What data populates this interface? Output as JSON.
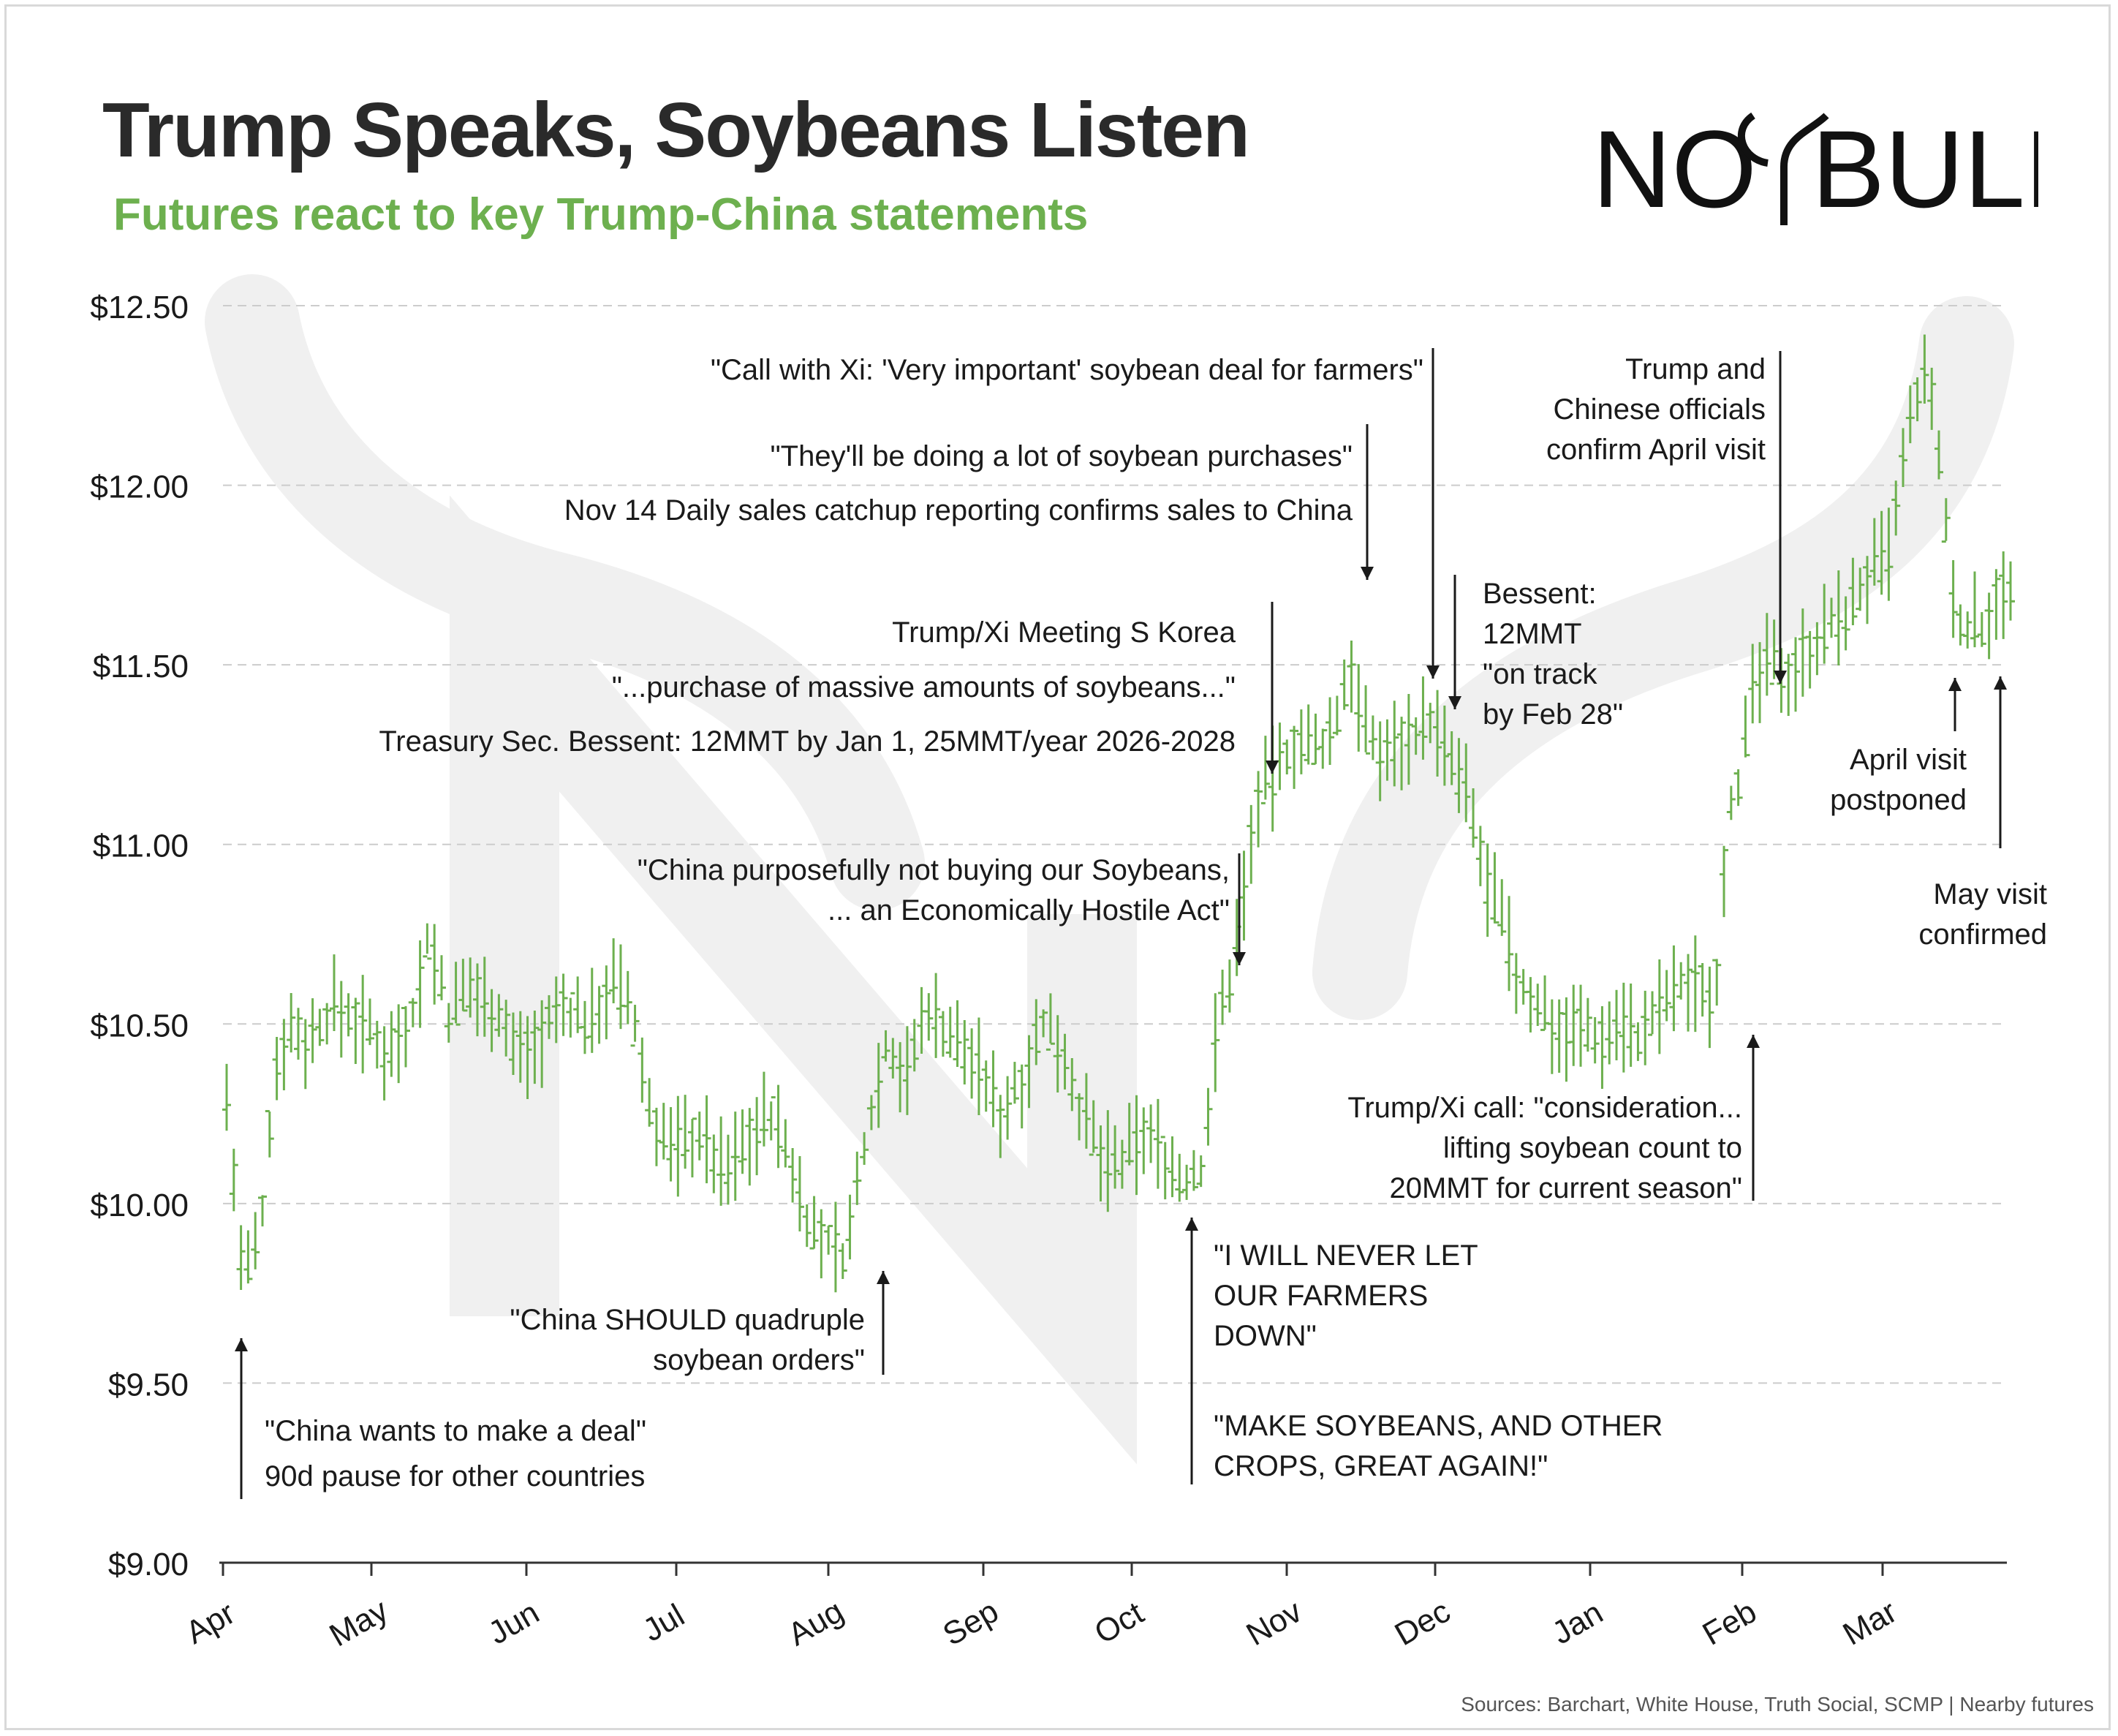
{
  "header": {
    "title": "Trump Speaks, Soybeans Listen",
    "subtitle": "Futures react to key Trump-China statements",
    "logo_text": "NO BULL"
  },
  "footer": {
    "sources": "Sources: Barchart, White House, Truth Social, SCMP | Nearby futures"
  },
  "colors": {
    "bar": "#6db04f",
    "title": "#2a2a2a",
    "subtitle": "#6db04f",
    "grid": "#cccccc",
    "axis": "#333333",
    "watermark": "#f0f0f0"
  },
  "chart_data": {
    "type": "ohlc",
    "title": "Trump Speaks, Soybeans Listen",
    "subtitle": "Futures react to key Trump-China statements",
    "ylim": [
      9.0,
      12.5
    ],
    "yticks": [
      9.0,
      9.5,
      10.0,
      10.5,
      11.0,
      11.5,
      12.0,
      12.5
    ],
    "ytick_labels": [
      "$9.00",
      "$9.50",
      "$10.00",
      "$10.50",
      "$11.00",
      "$11.50",
      "$12.00",
      "$12.50"
    ],
    "grid": true,
    "x_months": [
      "Apr",
      "May",
      "Jun",
      "Jul",
      "Aug",
      "Sep",
      "Oct",
      "Nov",
      "Dec",
      "Jan",
      "Feb",
      "Mar"
    ],
    "x_range_months": [
      0,
      11.85
    ],
    "series": [
      {
        "path": [
          [
            0.0,
            10.3
          ],
          [
            0.12,
            9.78
          ],
          [
            0.25,
            9.9
          ],
          [
            0.35,
            10.35
          ],
          [
            0.45,
            10.5
          ],
          [
            0.6,
            10.45
          ],
          [
            0.8,
            10.55
          ],
          [
            1.0,
            10.5
          ],
          [
            1.2,
            10.42
          ],
          [
            1.4,
            10.55
          ],
          [
            1.5,
            10.75
          ],
          [
            1.65,
            10.52
          ],
          [
            1.8,
            10.6
          ],
          [
            2.0,
            10.55
          ],
          [
            2.15,
            10.42
          ],
          [
            2.3,
            10.45
          ],
          [
            2.5,
            10.55
          ],
          [
            2.7,
            10.5
          ],
          [
            2.85,
            10.62
          ],
          [
            3.0,
            10.55
          ],
          [
            3.15,
            10.25
          ],
          [
            3.3,
            10.15
          ],
          [
            3.5,
            10.2
          ],
          [
            3.7,
            10.08
          ],
          [
            3.9,
            10.2
          ],
          [
            4.05,
            10.25
          ],
          [
            4.2,
            10.1
          ],
          [
            4.35,
            9.92
          ],
          [
            4.5,
            9.88
          ],
          [
            4.6,
            9.85
          ],
          [
            4.75,
            10.2
          ],
          [
            4.9,
            10.45
          ],
          [
            5.05,
            10.35
          ],
          [
            5.2,
            10.55
          ],
          [
            5.35,
            10.48
          ],
          [
            5.55,
            10.4
          ],
          [
            5.75,
            10.25
          ],
          [
            5.9,
            10.35
          ],
          [
            6.05,
            10.5
          ],
          [
            6.2,
            10.45
          ],
          [
            6.35,
            10.25
          ],
          [
            6.5,
            10.12
          ],
          [
            6.65,
            10.1
          ],
          [
            6.8,
            10.2
          ],
          [
            6.95,
            10.15
          ],
          [
            7.1,
            10.05
          ],
          [
            7.25,
            10.1
          ],
          [
            7.35,
            10.48
          ],
          [
            7.45,
            10.62
          ],
          [
            7.55,
            10.85
          ],
          [
            7.65,
            11.12
          ],
          [
            7.8,
            11.2
          ],
          [
            7.95,
            11.3
          ],
          [
            8.1,
            11.25
          ],
          [
            8.25,
            11.35
          ],
          [
            8.35,
            11.52
          ],
          [
            8.45,
            11.3
          ],
          [
            8.6,
            11.25
          ],
          [
            8.75,
            11.3
          ],
          [
            8.95,
            11.35
          ],
          [
            9.05,
            11.25
          ],
          [
            9.2,
            11.15
          ],
          [
            9.35,
            10.9
          ],
          [
            9.5,
            10.75
          ],
          [
            9.6,
            10.6
          ],
          [
            9.75,
            10.55
          ],
          [
            9.9,
            10.48
          ],
          [
            10.05,
            10.5
          ],
          [
            10.2,
            10.45
          ],
          [
            10.35,
            10.52
          ],
          [
            10.5,
            10.45
          ],
          [
            10.65,
            10.55
          ],
          [
            10.8,
            10.6
          ],
          [
            10.95,
            10.62
          ],
          [
            11.05,
            10.55
          ],
          [
            11.15,
            11.1
          ],
          [
            11.25,
            11.2
          ],
          [
            11.35,
            11.45
          ],
          [
            11.45,
            11.5
          ],
          [
            11.6,
            11.48
          ],
          [
            11.75,
            11.55
          ],
          [
            11.9,
            11.6
          ],
          [
            12.05,
            11.65
          ],
          [
            12.2,
            11.75
          ],
          [
            12.35,
            11.8
          ],
          [
            12.45,
            12.05
          ],
          [
            12.55,
            12.25
          ],
          [
            12.65,
            12.3
          ],
          [
            12.75,
            11.95
          ],
          [
            12.85,
            11.6
          ],
          [
            12.95,
            11.62
          ],
          [
            13.05,
            11.6
          ],
          [
            13.15,
            11.72
          ],
          [
            13.25,
            11.68
          ]
        ]
      }
    ],
    "annotations": [
      {
        "lines": [
          "\"China wants to make a deal\"",
          "90d pause for other countries"
        ]
      },
      {
        "lines": [
          "\"China SHOULD quadruple",
          "soybean orders\""
        ]
      },
      {
        "lines": [
          "\"I WILL NEVER LET",
          "OUR FARMERS",
          "DOWN\""
        ]
      },
      {
        "lines": [
          "\"MAKE SOYBEANS, AND OTHER",
          "CROPS, GREAT AGAIN!\""
        ]
      },
      {
        "lines": [
          "\"China purposefully not buying our Soybeans,",
          "... an Economically Hostile Act\""
        ]
      },
      {
        "lines": [
          "Trump/Xi Meeting S Korea"
        ]
      },
      {
        "lines": [
          "\"...purchase of massive amounts of soybeans...\""
        ]
      },
      {
        "lines": [
          "Treasury Sec. Bessent: 12MMT by Jan 1, 25MMT/year 2026-2028"
        ]
      },
      {
        "lines": [
          "\"They'll be doing a lot of soybean purchases\""
        ]
      },
      {
        "lines": [
          "Nov 14 Daily sales catchup reporting confirms sales to China"
        ]
      },
      {
        "lines": [
          "\"Call with Xi: 'Very important' soybean deal for farmers\""
        ]
      },
      {
        "lines": [
          "Bessent:",
          "12MMT",
          "\"on track",
          "by Feb 28\""
        ]
      },
      {
        "lines": [
          "Trump/Xi call: \"consideration...",
          "lifting soybean count to",
          "20MMT for current season\""
        ]
      },
      {
        "lines": [
          "Trump and",
          "Chinese officials",
          "confirm April visit"
        ]
      },
      {
        "lines": [
          "April visit",
          "postponed"
        ]
      },
      {
        "lines": [
          "May visit",
          "confirmed"
        ]
      }
    ]
  }
}
